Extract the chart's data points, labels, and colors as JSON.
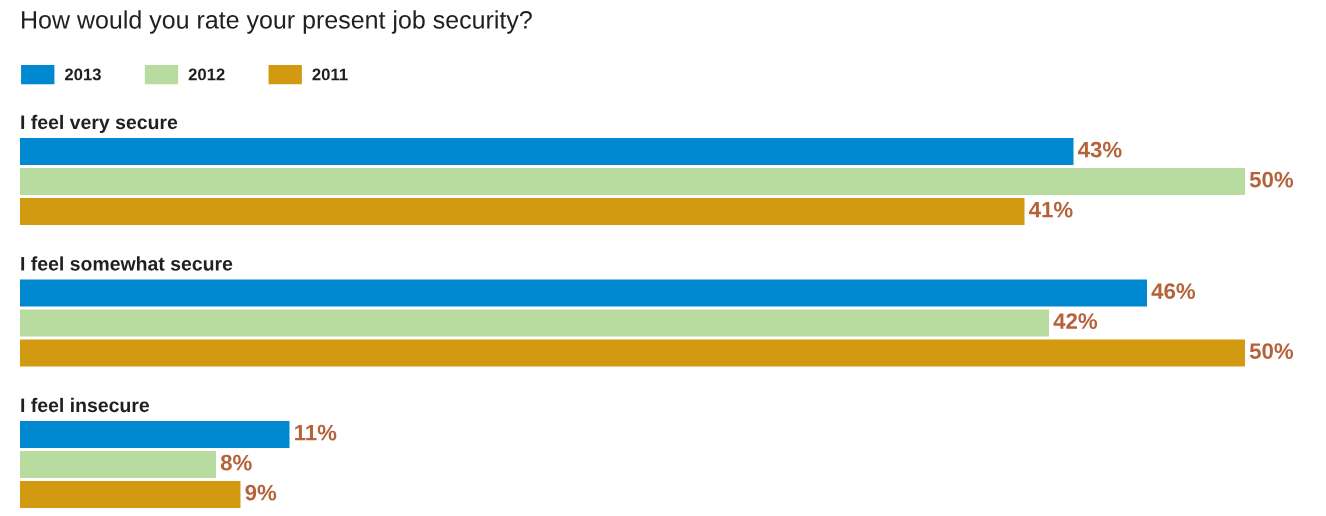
{
  "chart_data": {
    "type": "bar",
    "orientation": "horizontal",
    "title": "How would you rate your present job security?",
    "categories": [
      "I feel very secure",
      "I feel somewhat secure",
      "I feel insecure"
    ],
    "series": [
      {
        "name": "2013",
        "color": "#0088d1",
        "values": [
          43,
          46,
          11
        ],
        "value_labels": [
          "43%",
          "46%",
          "11%"
        ]
      },
      {
        "name": "2012",
        "color": "#b8dba0",
        "values": [
          50,
          42,
          8
        ],
        "value_labels": [
          "50%",
          "42%",
          "8%"
        ]
      },
      {
        "name": "2011",
        "color": "#d29a10",
        "values": [
          41,
          50,
          9
        ],
        "value_labels": [
          "41%",
          "50%",
          "9%"
        ]
      }
    ],
    "legend": "top left"
  }
}
